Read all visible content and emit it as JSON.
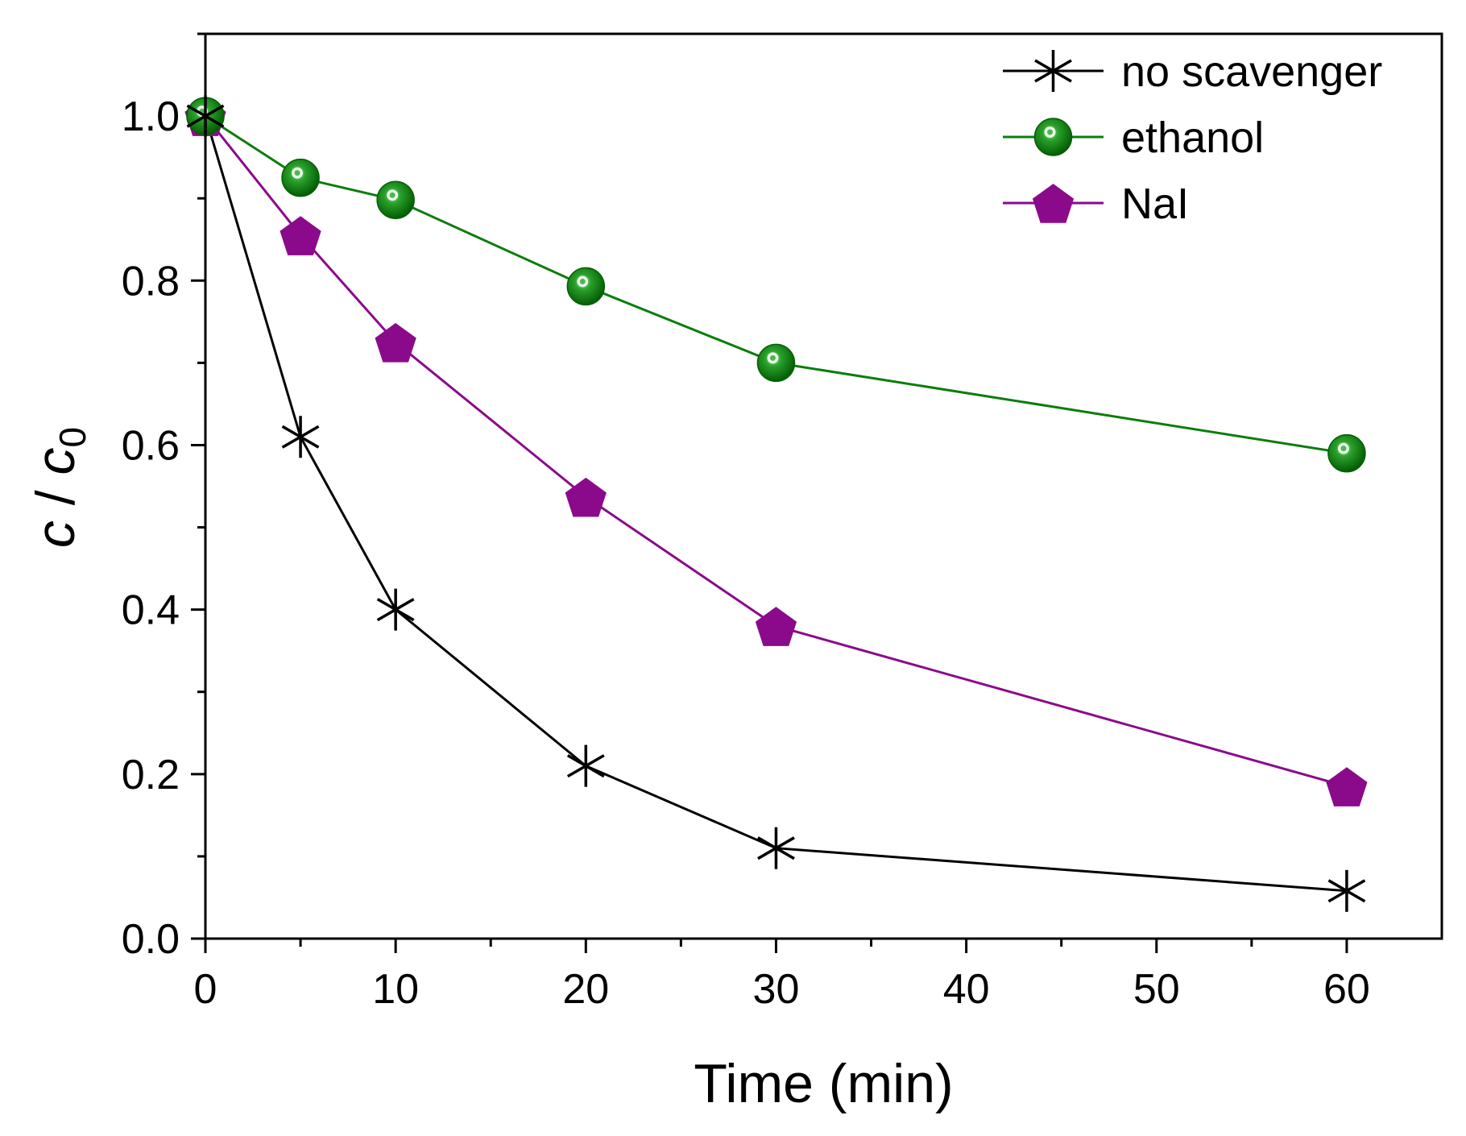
{
  "chart_data": {
    "type": "line",
    "title": "",
    "xlabel": "Time (min)",
    "ylabel": {
      "numerator": "c",
      "slash": "/",
      "denominator": "c",
      "subscript": "0"
    },
    "xlim": [
      0,
      65
    ],
    "ylim": [
      0,
      1.1
    ],
    "x_major_ticks": [
      0,
      10,
      20,
      30,
      40,
      50,
      60
    ],
    "x_minor_ticks": [
      5,
      15,
      25,
      35,
      45,
      55
    ],
    "x_tick_labels": [
      "0",
      "10",
      "20",
      "30",
      "40",
      "50",
      "60"
    ],
    "y_major_ticks": [
      0,
      0.2,
      0.4,
      0.6,
      0.8,
      1.0
    ],
    "y_minor_ticks": [
      0.1,
      0.3,
      0.5,
      0.7,
      0.9,
      1.1
    ],
    "y_tick_labels": [
      "0.0",
      "0.2",
      "0.4",
      "0.6",
      "0.8",
      "1.0"
    ],
    "grid": false,
    "legend_position": "top-right",
    "series": [
      {
        "name": "no scavenger",
        "marker": "asterisk",
        "color": "#000000",
        "x": [
          0,
          5,
          10,
          20,
          30,
          60
        ],
        "values": [
          1.0,
          0.61,
          0.4,
          0.21,
          0.11,
          0.058
        ]
      },
      {
        "name": "ethanol",
        "marker": "sphere",
        "color": "#0b7d0b",
        "x": [
          0,
          5,
          10,
          20,
          30,
          60
        ],
        "values": [
          1.0,
          0.925,
          0.898,
          0.793,
          0.7,
          0.59
        ]
      },
      {
        "name": "NaI",
        "marker": "pentagon",
        "color": "#8b0a8b",
        "x": [
          0,
          5,
          10,
          20,
          30,
          60
        ],
        "values": [
          1.0,
          0.855,
          0.725,
          0.537,
          0.38,
          0.185
        ]
      }
    ]
  }
}
